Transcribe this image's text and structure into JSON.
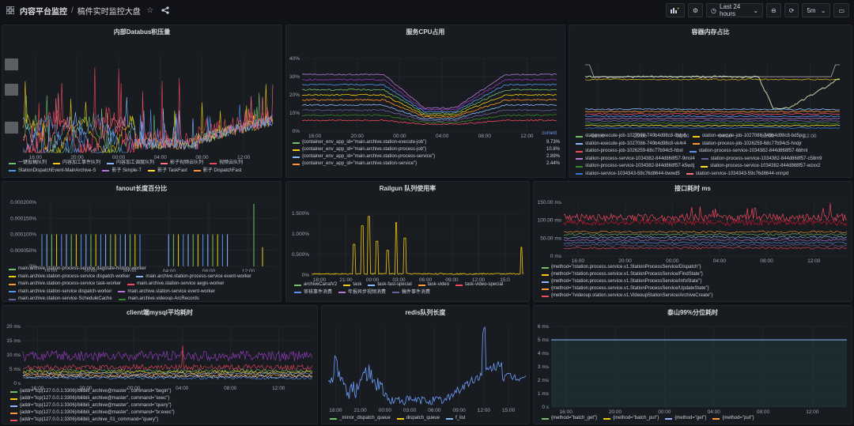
{
  "topbar": {
    "breadcrumb": "内容平台监控",
    "separator": "/",
    "title": "稿件实时监控大盘",
    "time_range": "Last 24 hours",
    "refresh": "5m"
  },
  "panels": [
    {
      "title": "内部Databus积压量",
      "xticks": [
        "16:00",
        "20:00",
        "00:00",
        "04:00",
        "08:00",
        "12:00"
      ],
      "legend": [
        "一键投稿队列",
        "内容加工事件队列",
        "内容加工调度队列",
        "影子视频云队列",
        "视频云队列",
        "StationDispatchEvent-MainArchive-S",
        "影子 Simple-T",
        "影子 TaskFast",
        "影子 DispatchFast"
      ],
      "colors": [
        "#73bf69",
        "#f2cc0c",
        "#8ab8ff",
        "#ff7383",
        "#f2495c",
        "#5794f2",
        "#b877d9",
        "#fade2a",
        "#ff9830"
      ]
    },
    {
      "title": "服务CPU占用",
      "yticks": [
        "40%",
        "30%",
        "20%",
        "10%",
        "0%"
      ],
      "xticks": [
        "16:00",
        "20:00",
        "00:00",
        "04:00",
        "08:00",
        "12:00"
      ],
      "current_header": "current",
      "legend": [
        {
          "label": "{container_env_app_id=\"main.archive.station-execute-job\"}",
          "value": "9.73%",
          "color": "#73bf69"
        },
        {
          "label": "{container_env_app_id=\"main.archive.station-process-job\"}",
          "value": "10.8%",
          "color": "#f2cc0c"
        },
        {
          "label": "{container_env_app_id=\"main.archive.station-process-service\"}",
          "value": "2.89%",
          "color": "#8ab8ff"
        },
        {
          "label": "{container_env_app_id=\"main.archive.station-service\"}",
          "value": "2.44%",
          "color": "#ff9830"
        }
      ]
    },
    {
      "title": "容器内存占比",
      "xticks": [
        "16:00",
        "20:00",
        "00:00",
        "04:00",
        "08:00",
        "12:00"
      ],
      "legend": [
        "station-execute-job-1027086-749b4d98c8-8ldp6",
        "station-execute-job-1027086-749b4d98c8-bd5pg",
        "station-execute-job-1027086-749b4d98c8-vk4r4",
        "station-process-job-1026259-68c77b94c5-hndjr",
        "station-process-job-1026259-68c77b94c5-hbxl",
        "station-process-service-1034382-844d868f57-6bhnl",
        "station-process-service-1034382-844d868f57-9msl4",
        "station-process-service-1034382-844d868f57-c58m9",
        "station-process-service-1034382-844d868f57-k5wdj",
        "station-process-service-1034382-844d868f57-wzxx2",
        "station-service-1034343-59c76d8644-bwwd5",
        "station-service-1034343-59c76d8644-vnnpd"
      ],
      "colors": [
        "#73bf69",
        "#f2cc0c",
        "#8ab8ff",
        "#ff9830",
        "#f2495c",
        "#5794f2",
        "#b877d9",
        "#705da0",
        "#37872d",
        "#fade2a",
        "#3274d9",
        "#ff7383"
      ]
    },
    {
      "title": "fanout长度百分比",
      "yticks": [
        "0.000200%",
        "0.000150%",
        "0.000100%",
        "0.000050%",
        "0%"
      ],
      "xticks": [
        "16:00",
        "20:00",
        "00:00",
        "04:00",
        "08:00",
        "12:00"
      ],
      "legend": [
        "main.archive.station-process-service dagstate-history-worker",
        "main.archive.station-process-service dispatch-worker",
        "main.archive.station-process-service event-worker",
        "main.archive.station-process-service task-worker",
        "main.archive.station-service aegis-worker",
        "main.archive.station-service dispatch-worker",
        "main.archive.station-service event-worker",
        "main.archive.station-service-ScheduleCache",
        "main.archive.videoup-ArcRecords"
      ],
      "colors": [
        "#73bf69",
        "#f2cc0c",
        "#8ab8ff",
        "#ff9830",
        "#f2495c",
        "#5794f2",
        "#b877d9",
        "#705da0",
        "#37872d"
      ]
    },
    {
      "title": "Railgun 队列使用率",
      "yticks": [
        "1.500%",
        "1.000%",
        "0.500%",
        "0%"
      ],
      "xticks": [
        "18:00",
        "21:00",
        "00:00",
        "03:00",
        "06:00",
        "09:00",
        "12:00",
        "15:0"
      ],
      "legend": [
        "archiveCanalV2",
        "task",
        "task-fast-special",
        "task-video",
        "task-video-special",
        "审核事件消费",
        "年报异步视频消费",
        "稿件事件消费"
      ],
      "colors": [
        "#73bf69",
        "#f2cc0c",
        "#8ab8ff",
        "#ff9830",
        "#f2495c",
        "#5794f2",
        "#b877d9",
        "#705da0"
      ]
    },
    {
      "title": "接口耗时 ms",
      "yticks": [
        "150.00 ms",
        "100.00 ms",
        "50.00 ms",
        "0 ms"
      ],
      "xticks": [
        "16:00",
        "20:00",
        "00:00",
        "04:00",
        "08:00",
        "12:00"
      ],
      "legend": [
        "{method=\"/station.process.service.v1.StationProcessService/Dispatch\"}",
        "{method=\"/station.process.service.v1.StationProcessService/FindState\"}",
        "{method=\"/station.process.service.v1.StationProcessService/InfoState\"}",
        "{method=\"/station.process.service.v1.StationProcessService/UpdateState\"}",
        "{method=\"/videoup.station.service.v1.VideoupStationService/ArchiveCreate\"}"
      ],
      "colors": [
        "#73bf69",
        "#f2cc0c",
        "#8ab8ff",
        "#ff9830",
        "#f2495c"
      ]
    },
    {
      "title": "client端mysql平均耗时",
      "yticks": [
        "20 ms",
        "15 ms",
        "10 ms",
        "5 ms",
        "0 s"
      ],
      "xticks": [
        "16:00",
        "20:00",
        "00:00",
        "04:00",
        "08:00",
        "12:00"
      ],
      "legend": [
        "{addr=\"tcp(127.0.0.1:3306)/bilibili_archive@master\", command=\"begin\"}",
        "{addr=\"tcp(127.0.0.1:3306)/bilibili_archive@master\", command=\"exec\"}",
        "{addr=\"tcp(127.0.0.1:3306)/bilibili_archive@master\", command=\"query\"}",
        "{addr=\"tcp(127.0.0.1:3306)/bilibili_archive@master\", command=\"tx:exec\"}",
        "{addr=\"tcp(127.0.0.1:3306)/bilibili_archive_01_command=\"query\"}"
      ],
      "colors": [
        "#73bf69",
        "#f2cc0c",
        "#8ab8ff",
        "#ff9830",
        "#f2495c"
      ]
    },
    {
      "title": "redis队列长度",
      "xticks": [
        "18:00",
        "21:00",
        "00:00",
        "03:00",
        "06:00",
        "09:00",
        "12:00",
        "15:00"
      ],
      "legend": [
        "_mirror_dispatch_queue",
        "dispatch_queue",
        "f_list"
      ],
      "colors": [
        "#73bf69",
        "#f2cc0c",
        "#8ab8ff"
      ]
    },
    {
      "title": "泰山99%分位耗时",
      "yticks": [
        "6 ms",
        "5 ms",
        "4 ms",
        "3 ms",
        "2 ms",
        "1 ms",
        "0 s"
      ],
      "xticks": [
        "16:00",
        "20:00",
        "00:00",
        "04:00",
        "08:00",
        "12:00"
      ],
      "legend": [
        "{method=\"batch_get\"}",
        "{method=\"batch_put\"}",
        "{method=\"get\"}",
        "{method=\"put\"}"
      ],
      "colors": [
        "#73bf69",
        "#f2cc0c",
        "#8ab8ff",
        "#ff9830"
      ]
    }
  ]
}
